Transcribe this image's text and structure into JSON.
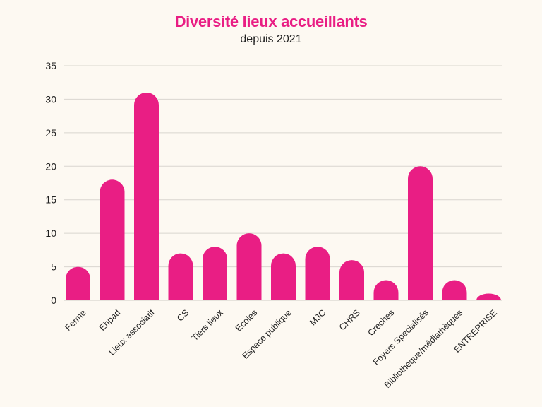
{
  "chart_data": {
    "type": "bar",
    "title": "Diversité lieux accueillants",
    "subtitle": "depuis 2021",
    "categories": [
      "Ferme",
      "Ehpad",
      "Lieux associatif",
      "CS",
      "Tiers lieux",
      "Ecoles",
      "Espace publique",
      "MJC",
      "CHRS",
      "Crèches",
      "Foyers Specialisés",
      "Bibliothéque/médiathèques",
      "ENTREPRISE"
    ],
    "values": [
      5,
      18,
      31,
      7,
      8,
      10,
      7,
      8,
      6,
      3,
      20,
      3,
      1
    ],
    "ylim": [
      0,
      35
    ],
    "yticks": [
      0,
      5,
      10,
      15,
      20,
      25,
      30,
      35
    ],
    "grid": true,
    "colors": {
      "bar": "#e91e84",
      "title": "#e91e84",
      "grid": "#d9d6cf",
      "background": "#fdf9f2"
    }
  }
}
